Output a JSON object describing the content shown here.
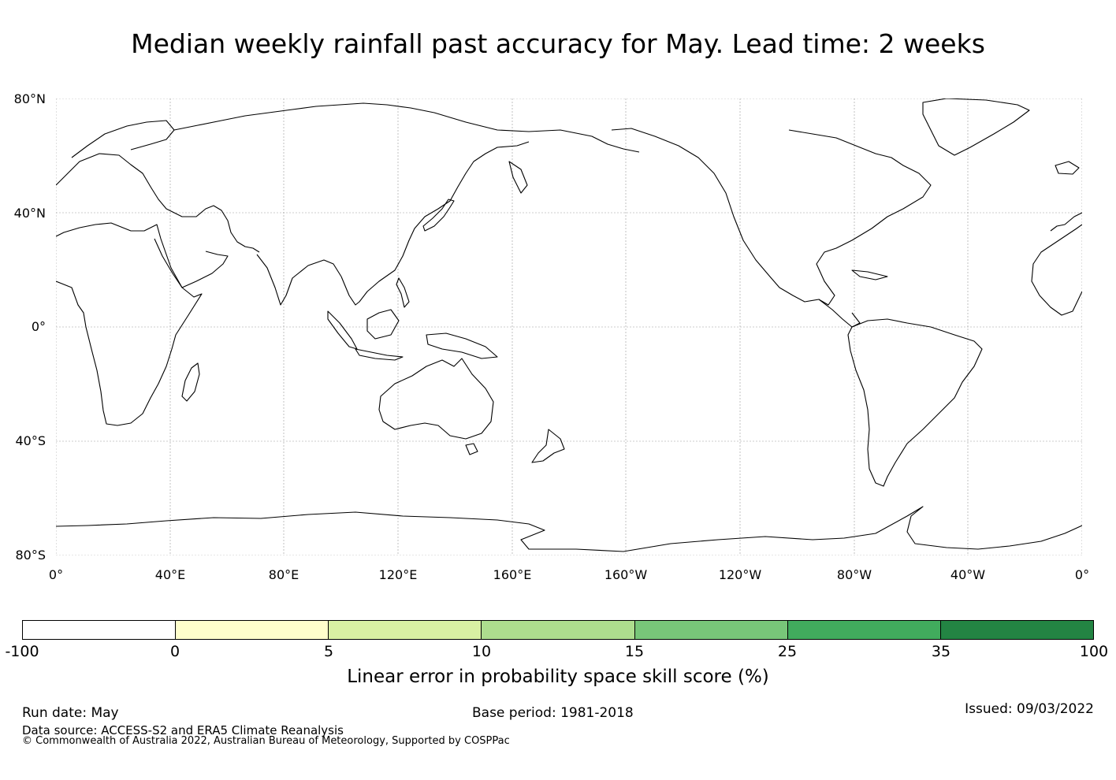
{
  "title": "Median weekly rainfall past accuracy for May. Lead time: 2 weeks",
  "map": {
    "projection": "Plate Carree, centred on 180°",
    "lat_labels": [
      "80°N",
      "40°N",
      "0°",
      "40°S",
      "80°S"
    ],
    "lon_labels": [
      "0°",
      "40°E",
      "80°E",
      "120°E",
      "160°E",
      "160°W",
      "120°W",
      "80°W",
      "40°W",
      "0°"
    ],
    "fill": "no skill-score shading visible (all cells white)"
  },
  "colorbar": {
    "ticks": [
      "-100",
      "0",
      "5",
      "10",
      "15",
      "25",
      "35",
      "100"
    ],
    "colors": [
      "#ffffff",
      "#ffffcc",
      "#d9f0a3",
      "#addd8e",
      "#78c679",
      "#41ab5d",
      "#238443"
    ],
    "label": "Linear error in probability space skill score (%)"
  },
  "footer": {
    "run_date": "Run date: May",
    "base_period": "Base period: 1981-2018",
    "issued": "Issued: 09/03/2022",
    "data_source": "Data source: ACCESS-S2 and ERA5 Climate Reanalysis",
    "copyright": "© Commonwealth of Australia 2022, Australian Bureau of Meteorology, Supported by COSPPac"
  }
}
